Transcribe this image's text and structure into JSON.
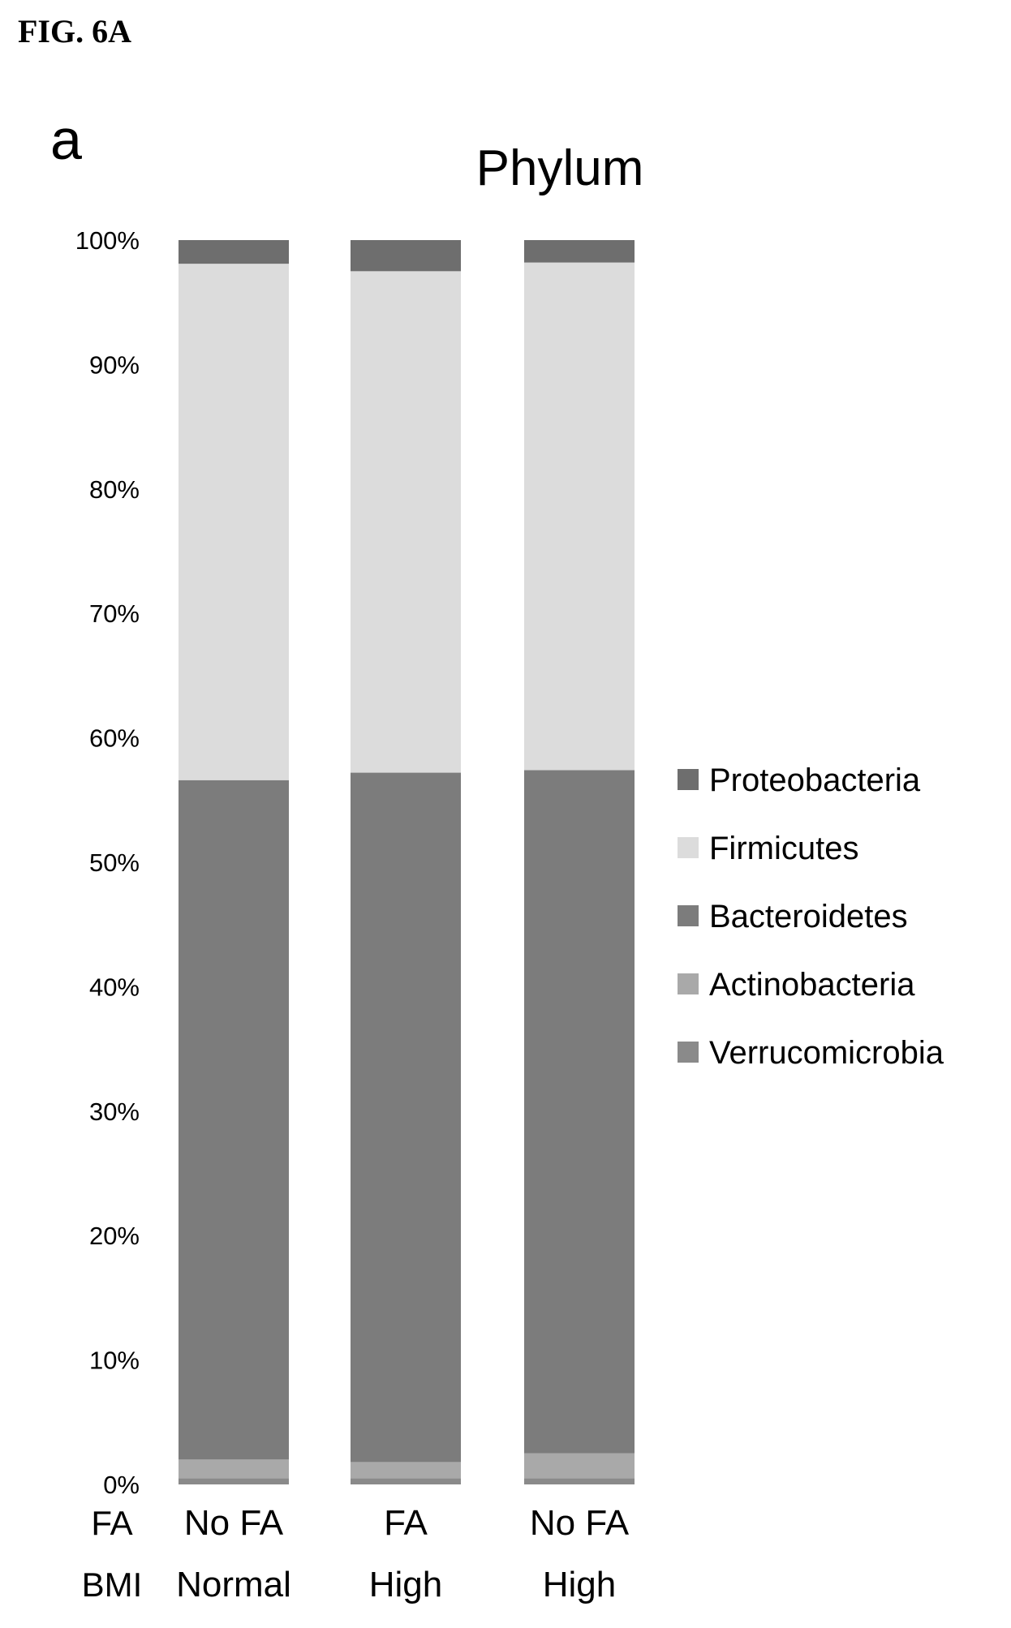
{
  "figure_label": "FIG. 6A",
  "panel_letter": "a",
  "chart_data": {
    "type": "bar",
    "stacked": true,
    "percent": true,
    "title": "Phylum",
    "xlabel": "",
    "ylabel": "",
    "ylim": [
      0,
      100
    ],
    "y_ticks": [
      "0%",
      "10%",
      "20%",
      "30%",
      "40%",
      "50%",
      "60%",
      "70%",
      "80%",
      "90%",
      "100%"
    ],
    "category_rows": [
      {
        "label": "FA",
        "values": [
          "No FA",
          "FA",
          "No FA"
        ]
      },
      {
        "label": "BMI",
        "values": [
          "Normal",
          "High",
          "High"
        ]
      }
    ],
    "categories": [
      "No FA Normal",
      "FA High",
      "No FA High"
    ],
    "series": [
      {
        "name": "Verrucomicrobia",
        "color": "#8a8a8a",
        "values": [
          0.5,
          0.5,
          0.5
        ]
      },
      {
        "name": "Actinobacteria",
        "color": "#a9a9a9",
        "values": [
          1.5,
          1.3,
          2.0
        ]
      },
      {
        "name": "Bacteroidetes",
        "color": "#7c7c7c",
        "values": [
          54.6,
          55.4,
          54.9
        ]
      },
      {
        "name": "Firmicutes",
        "color": "#dcdcdc",
        "values": [
          41.5,
          40.3,
          40.8
        ]
      },
      {
        "name": "Proteobacteria",
        "color": "#6e6e6e",
        "values": [
          1.9,
          2.5,
          1.8
        ]
      }
    ],
    "legend_order": [
      "Proteobacteria",
      "Firmicutes",
      "Bacteroidetes",
      "Actinobacteria",
      "Verrucomicrobia"
    ],
    "legend_position": "right",
    "grid": false
  }
}
